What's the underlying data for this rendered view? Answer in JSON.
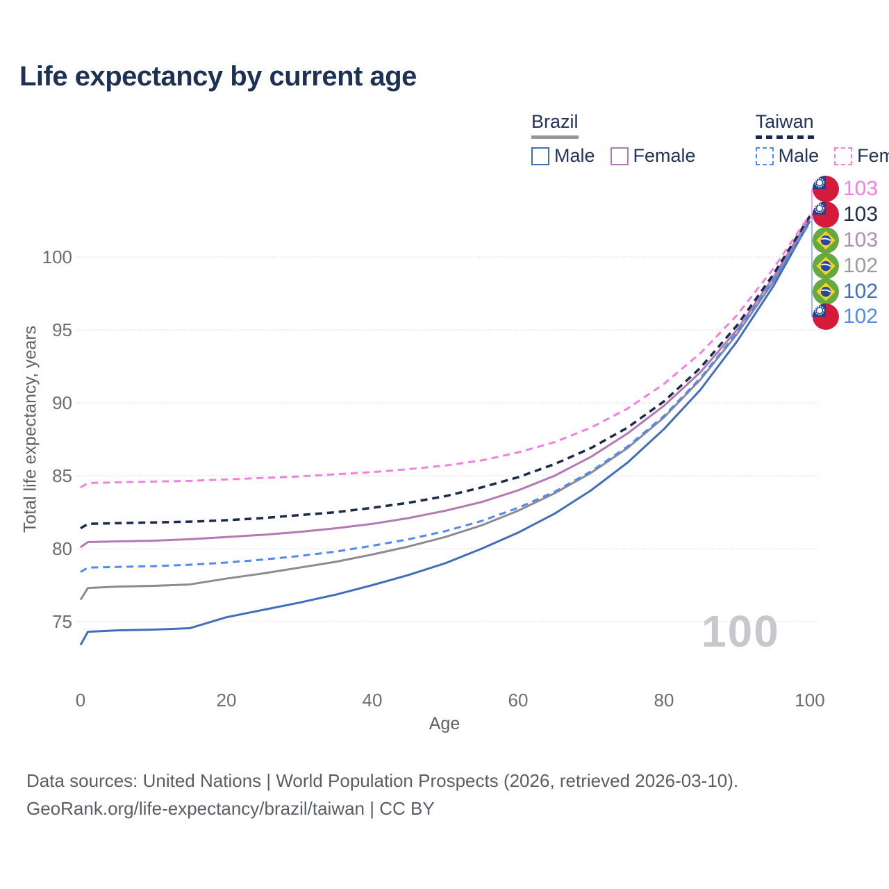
{
  "header": {
    "title": "Life expectancy by current age"
  },
  "legend": {
    "groups": [
      {
        "label": "Brazil",
        "line_style": "solid",
        "underline_color": "#97979d",
        "items": [
          {
            "label": "Male",
            "color": "#3f6fba"
          },
          {
            "label": "Female",
            "color": "#b27ab4"
          }
        ]
      },
      {
        "label": "Taiwan",
        "line_style": "dashed",
        "underline_color": "#1b2a4a",
        "items": [
          {
            "label": "Male",
            "color": "#5189ee"
          },
          {
            "label": "Female",
            "color": "#f57fdf"
          }
        ]
      }
    ]
  },
  "watermark": "100",
  "footer": {
    "line1": "Data sources: United Nations | World Population Prospects (2026, retrieved 2026-03-10).",
    "line2": "GeoRank.org/life-expectancy/brazil/taiwan | CC BY"
  },
  "chart_data": {
    "type": "line",
    "title": "Life expectancy by current age",
    "xlabel": "Age",
    "ylabel": "Total life expectancy, years",
    "xlim": [
      0,
      100
    ],
    "ylim": [
      73,
      104
    ],
    "x_ticks": [
      0,
      20,
      40,
      60,
      80,
      100
    ],
    "y_ticks": [
      75,
      80,
      85,
      90,
      95,
      100
    ],
    "grid": "horizontal-dotted",
    "legend_position": "top-right",
    "x": [
      0,
      1,
      5,
      10,
      15,
      20,
      25,
      30,
      35,
      40,
      45,
      50,
      55,
      60,
      65,
      70,
      75,
      80,
      85,
      90,
      95,
      100
    ],
    "series": [
      {
        "name": "Brazil Both sexes",
        "country": "Brazil",
        "sex": "Both",
        "color": "#8b8b91",
        "dash": false,
        "width": 3,
        "end_label": "102",
        "values": [
          76.5,
          77.3,
          77.4,
          77.45,
          77.55,
          77.95,
          78.3,
          78.7,
          79.1,
          79.6,
          80.15,
          80.8,
          81.6,
          82.6,
          83.8,
          85.2,
          86.9,
          89.0,
          91.6,
          94.7,
          98.3,
          102.5
        ]
      },
      {
        "name": "Brazil Male",
        "country": "Brazil",
        "sex": "Male",
        "color": "#3f6fba",
        "dash": false,
        "width": 3,
        "end_label": "102",
        "values": [
          73.4,
          74.3,
          74.4,
          74.45,
          74.55,
          75.3,
          75.8,
          76.3,
          76.85,
          77.5,
          78.2,
          79.0,
          80.0,
          81.1,
          82.4,
          84.0,
          85.9,
          88.2,
          90.9,
          94.2,
          98.0,
          102.45
        ]
      },
      {
        "name": "Brazil Female",
        "country": "Brazil",
        "sex": "Female",
        "color": "#b27ab4",
        "dash": false,
        "width": 3,
        "end_label": "103",
        "values": [
          80.1,
          80.45,
          80.5,
          80.55,
          80.65,
          80.8,
          80.95,
          81.15,
          81.4,
          81.7,
          82.1,
          82.6,
          83.2,
          84.0,
          85.0,
          86.3,
          87.9,
          89.8,
          92.1,
          95.0,
          98.6,
          102.7
        ]
      },
      {
        "name": "Taiwan Male",
        "country": "Taiwan",
        "sex": "Male",
        "color": "#5189ee",
        "dash": true,
        "width": 3,
        "end_label": "102",
        "values": [
          78.4,
          78.7,
          78.75,
          78.8,
          78.9,
          79.05,
          79.25,
          79.5,
          79.8,
          80.2,
          80.65,
          81.2,
          81.9,
          82.8,
          83.9,
          85.3,
          87.0,
          89.1,
          91.7,
          94.8,
          98.4,
          102.35
        ]
      },
      {
        "name": "Taiwan Both sexes",
        "country": "Taiwan",
        "sex": "Both",
        "color": "#1b2a4a",
        "dash": true,
        "width": 3.5,
        "end_label": "103",
        "values": [
          81.4,
          81.7,
          81.75,
          81.8,
          81.85,
          81.95,
          82.1,
          82.3,
          82.5,
          82.8,
          83.15,
          83.6,
          84.2,
          84.9,
          85.8,
          86.9,
          88.3,
          90.1,
          92.4,
          95.3,
          98.8,
          102.8
        ]
      },
      {
        "name": "Taiwan Female",
        "country": "Taiwan",
        "sex": "Female",
        "color": "#f57fdf",
        "dash": true,
        "width": 3,
        "end_label": "103",
        "values": [
          84.2,
          84.5,
          84.55,
          84.6,
          84.65,
          84.75,
          84.85,
          84.95,
          85.1,
          85.25,
          85.45,
          85.7,
          86.05,
          86.6,
          87.3,
          88.3,
          89.6,
          91.3,
          93.4,
          96.0,
          99.2,
          102.9
        ]
      }
    ],
    "end_labels": [
      {
        "flag": "taiwan",
        "text": "103",
        "color": "#f57fdf"
      },
      {
        "flag": "taiwan",
        "text": "103",
        "color": "#1d2b48"
      },
      {
        "flag": "brazil",
        "text": "103",
        "color": "#b48ab6"
      },
      {
        "flag": "brazil",
        "text": "102",
        "color": "#9b9ba1"
      },
      {
        "flag": "brazil",
        "text": "102",
        "color": "#3f6fba"
      },
      {
        "flag": "taiwan",
        "text": "102",
        "color": "#5189ee"
      }
    ]
  }
}
